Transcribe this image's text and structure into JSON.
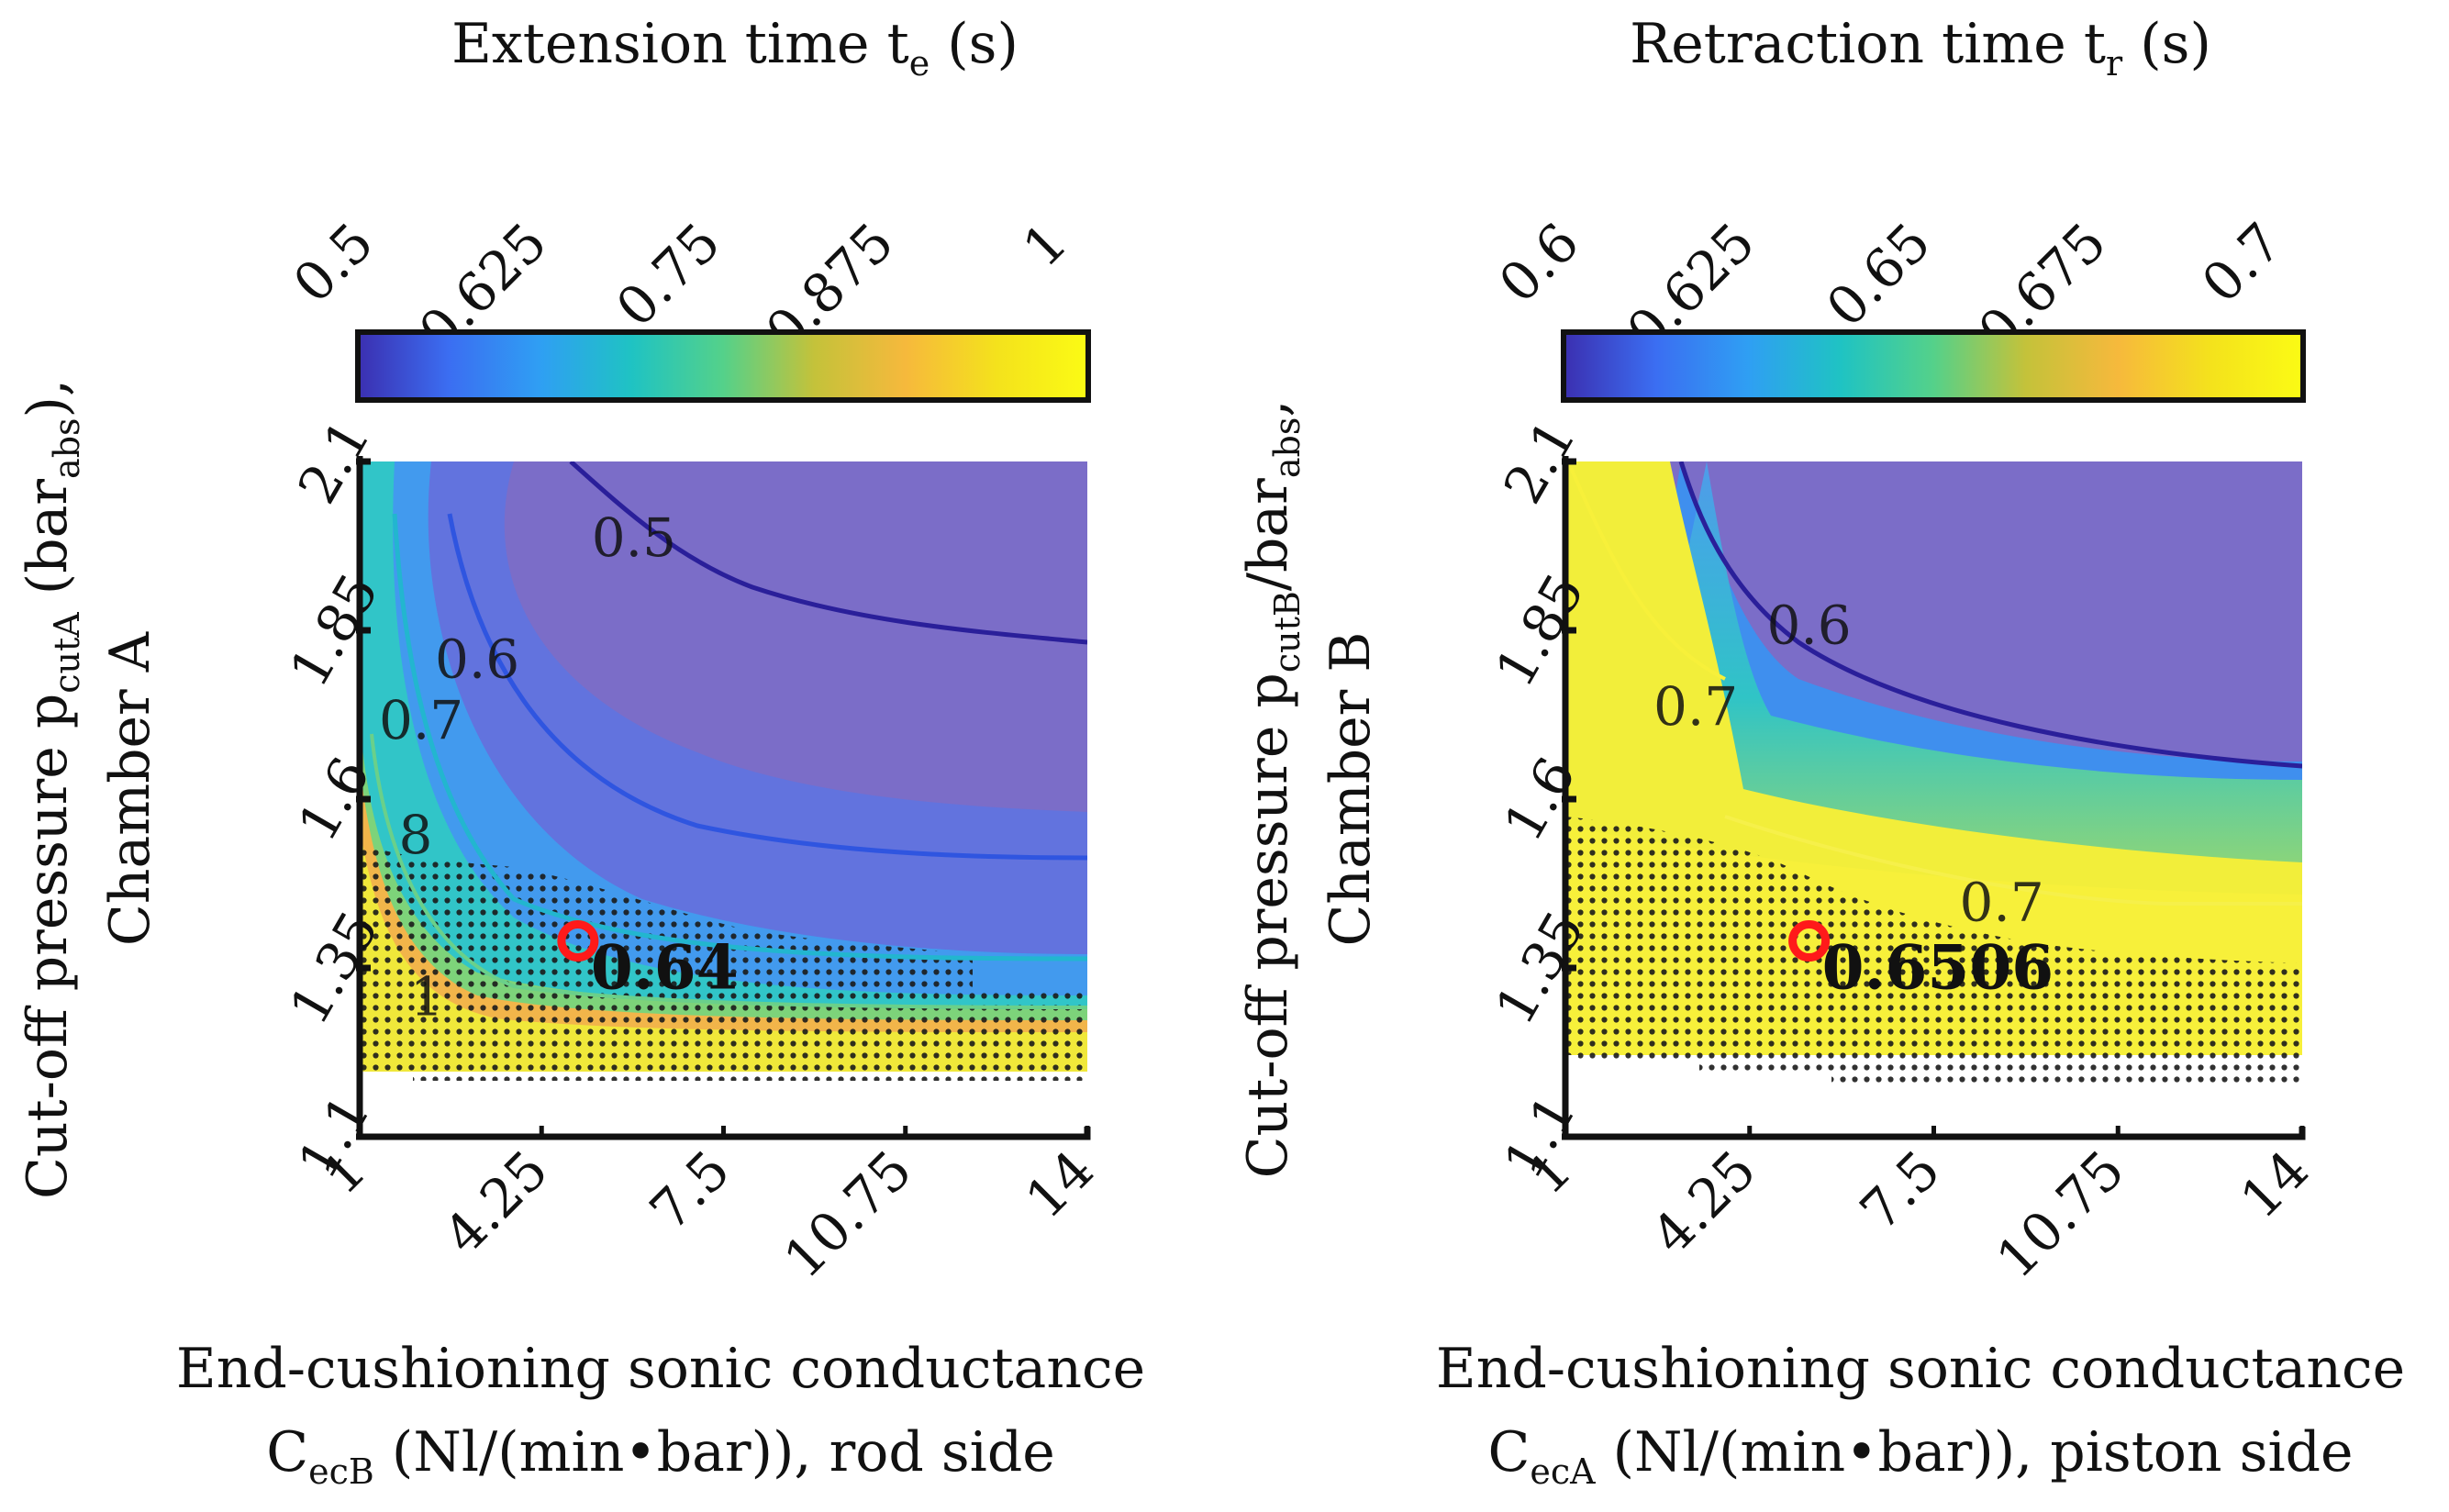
{
  "colors": {
    "cmap": [
      "#3b2fb0",
      "#3b6ef2",
      "#2f9ff3",
      "#1fc3c3",
      "#54d18a",
      "#c4c23a",
      "#f6b93c",
      "#f4e21c",
      "#fbfb14"
    ],
    "deep_purple": "#7b6dc8",
    "yellow_fill": "#eeee3c",
    "marker_red": "#ff1a1a"
  },
  "chart_data": [
    {
      "type": "heatmap",
      "title": "Extension time t_e (s)",
      "title_main": "Extension time t",
      "title_sub": "e",
      "title_tail": " (s)",
      "colorbar": {
        "ticks": [
          "0.5",
          "0.625",
          "0.75",
          "0.875",
          "1"
        ],
        "range": [
          0.5,
          1
        ]
      },
      "xlabel_line1": "End-cushioning sonic conductance",
      "xlabel_line2_main": "C",
      "xlabel_line2_sub": "ecB",
      "xlabel_line2_tail": " (Nl/(min•bar)), rod side",
      "ylabel_line1_main": "Cut-off pressure p",
      "ylabel_line1_sub": "cutA",
      "ylabel_line1_tail": " (bar",
      "ylabel_line1_sub2": "abs",
      "ylabel_line1_tail2": "),",
      "ylabel_line2": "Chamber A",
      "x_ticks": [
        "1",
        "4.25",
        "7.5",
        "10.75",
        "14"
      ],
      "x_range": [
        1,
        14
      ],
      "y_ticks": [
        "1.1",
        "1.35",
        "1.6",
        "1.85",
        "2.1"
      ],
      "y_range": [
        1.1,
        2.1
      ],
      "contour_labels": [
        {
          "text": "0.5",
          "x": 5.9,
          "y": 1.96
        },
        {
          "text": "0.6",
          "x": 3.1,
          "y": 1.78
        },
        {
          "text": "0.7",
          "x": 2.1,
          "y": 1.69
        },
        {
          "text": "8",
          "x": 2.0,
          "y": 1.52
        },
        {
          "text": "1",
          "x": 2.2,
          "y": 1.28
        }
      ],
      "optimum": {
        "label": "0.64",
        "x": 4.9,
        "y": 1.39
      },
      "dotted_region": "infeasible"
    },
    {
      "type": "heatmap",
      "title": "Retraction time t_r (s)",
      "title_main": "Retraction time t",
      "title_sub": "r",
      "title_tail": " (s)",
      "colorbar": {
        "ticks": [
          "0.6",
          "0.625",
          "0.65",
          "0.675",
          "0.7"
        ],
        "range": [
          0.6,
          0.7
        ]
      },
      "xlabel_line1": "End-cushioning sonic conductance",
      "xlabel_line2_main": "C",
      "xlabel_line2_sub": "ecA",
      "xlabel_line2_tail": " (Nl/(min•bar)), piston side",
      "ylabel_line1_main": "Cut-off pressure p",
      "ylabel_line1_sub": "cutB",
      "ylabel_line1_tail": "/bar",
      "ylabel_line1_sub2": "abs",
      "ylabel_line1_tail2": ",",
      "ylabel_line2": "Chamber B",
      "x_ticks": [
        "1",
        "4.25",
        "7.5",
        "10.75",
        "14"
      ],
      "x_range": [
        1,
        14
      ],
      "y_ticks": [
        "1.1",
        "1.35",
        "1.6",
        "1.85",
        "2.1"
      ],
      "y_range": [
        1.1,
        2.1
      ],
      "contour_labels": [
        {
          "text": "0.6",
          "x": 5.3,
          "y": 1.83
        },
        {
          "text": "0.7",
          "x": 3.3,
          "y": 1.71
        },
        {
          "text": "0.7",
          "x": 8.7,
          "y": 1.42
        }
      ],
      "optimum": {
        "label": "0.6506",
        "x": 5.3,
        "y": 1.39
      },
      "dotted_region": "infeasible"
    }
  ]
}
